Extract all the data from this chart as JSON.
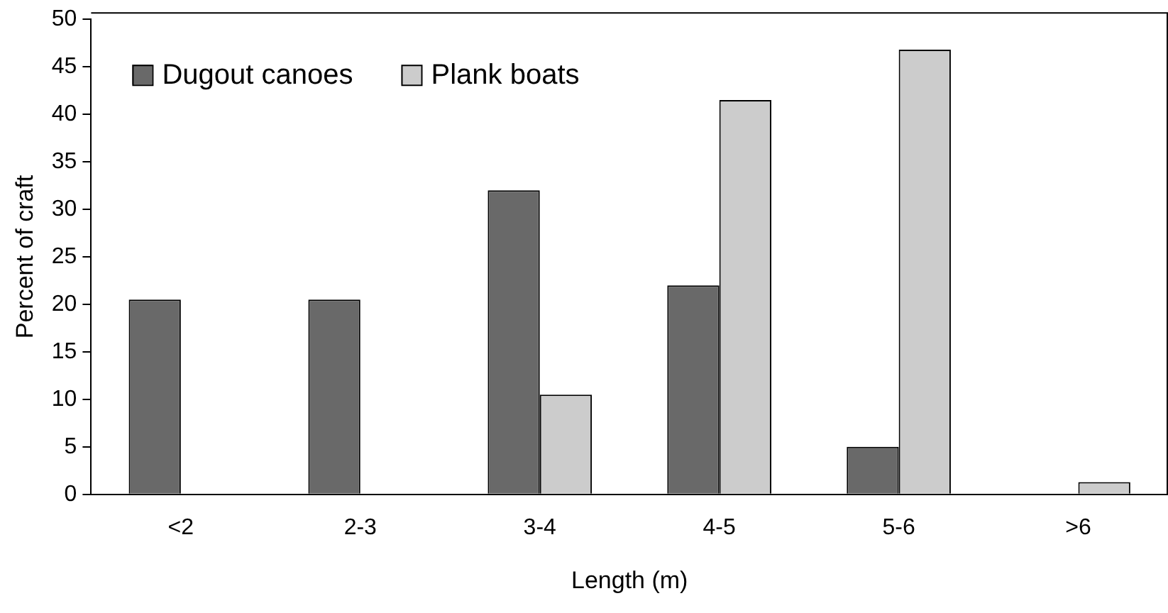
{
  "chart_data": {
    "type": "bar",
    "xlabel": "Length (m)",
    "ylabel": "Percent of craft",
    "categories": [
      "<2",
      "2-3",
      "3-4",
      "4-5",
      "5-6",
      ">6"
    ],
    "series": [
      {
        "name": "Dugout canoes",
        "color": "#696969",
        "values": [
          20.5,
          20.5,
          32,
          22,
          5,
          0
        ]
      },
      {
        "name": "Plank boats",
        "color": "#cccccc",
        "values": [
          0,
          0,
          10.5,
          41.5,
          46.8,
          1.3
        ]
      }
    ],
    "ylim": [
      0,
      50
    ],
    "yticks": [
      0,
      5,
      10,
      15,
      20,
      25,
      30,
      35,
      40,
      45,
      50
    ],
    "grid": false,
    "legend": "top left"
  }
}
